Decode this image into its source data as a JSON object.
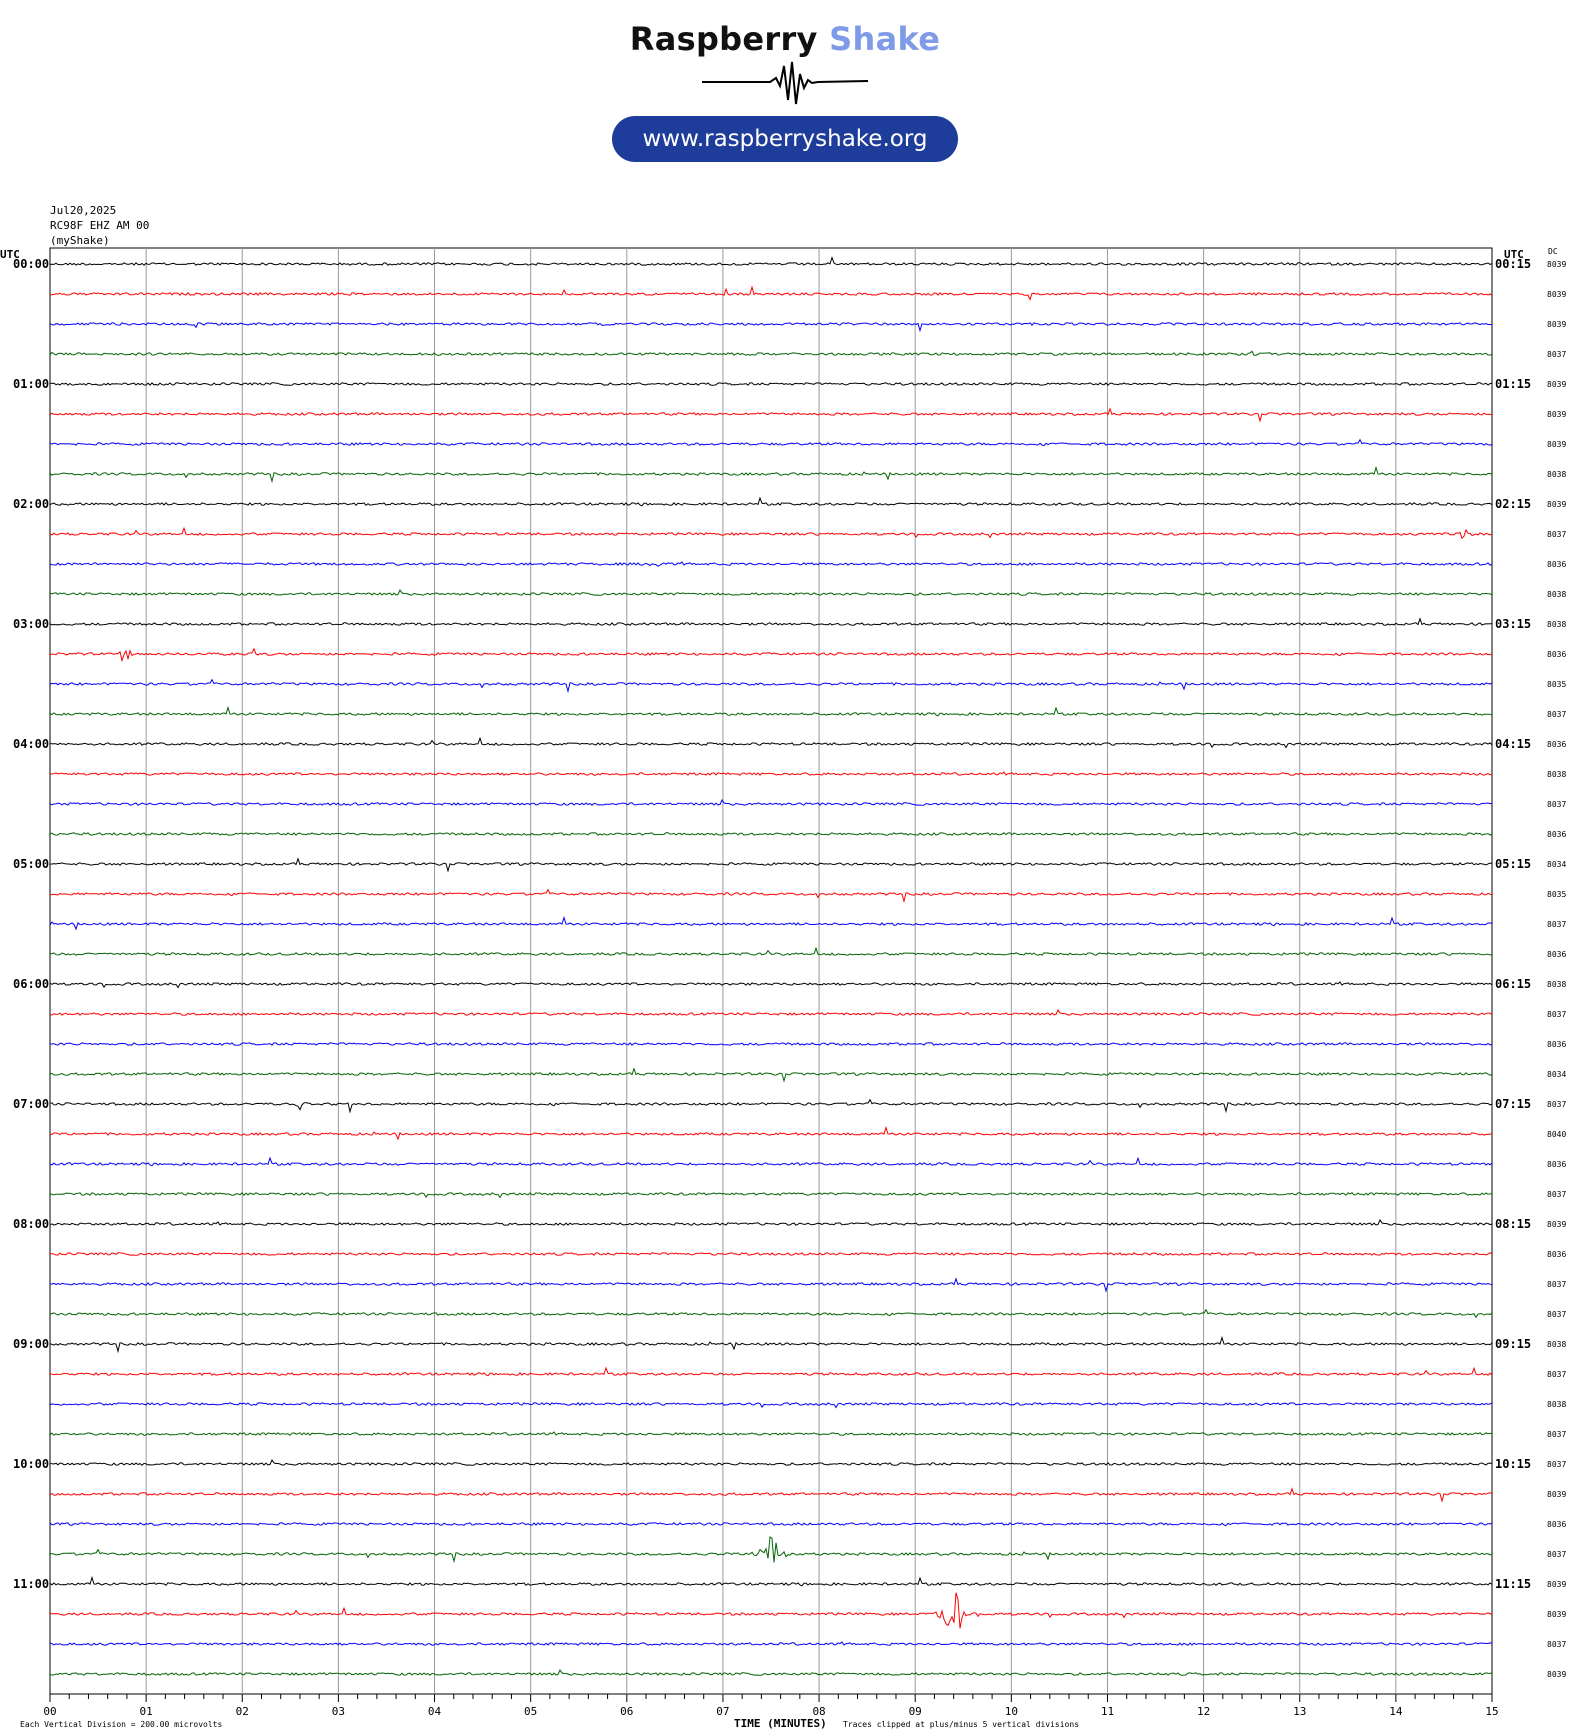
{
  "header": {
    "brand_part1": "Raspberry",
    "brand_part2": "Shake",
    "url": "www.raspberryshake.org",
    "date": "Jul20,2025",
    "station": "RC98F EHZ AM 00",
    "source": "(myShake)"
  },
  "colors": {
    "brand_dark": "#111111",
    "brand_light": "#7f9ae6",
    "pill": "#1e3c99",
    "traces": [
      "#000000",
      "#ff0000",
      "#0000ff",
      "#006400"
    ]
  },
  "chart_data": {
    "type": "line",
    "left_axis_title": "UTC",
    "right_axis_title": "UTC",
    "dc_title": "DC",
    "xlabel": "TIME (MINUTES)",
    "x_ticks": [
      "00",
      "01",
      "02",
      "03",
      "04",
      "05",
      "06",
      "07",
      "08",
      "09",
      "10",
      "11",
      "12",
      "13",
      "14",
      "15"
    ],
    "xlim": [
      0,
      15
    ],
    "left_labels": [
      "00:00",
      "01:00",
      "02:00",
      "03:00",
      "04:00",
      "05:00",
      "06:00",
      "07:00",
      "08:00",
      "09:00",
      "10:00",
      "11:00"
    ],
    "right_labels": [
      "00:15",
      "01:15",
      "02:15",
      "03:15",
      "04:15",
      "05:15",
      "06:15",
      "07:15",
      "08:15",
      "09:15",
      "10:15",
      "11:15"
    ],
    "dc_values": [
      "8039",
      "8039",
      "8039",
      "8037",
      "8039",
      "8039",
      "8039",
      "8038",
      "8039",
      "8037",
      "8036",
      "8038",
      "8038",
      "8036",
      "8035",
      "8037",
      "8036",
      "8038",
      "8037",
      "8036",
      "8034",
      "8035",
      "8037",
      "8036",
      "8038",
      "8037",
      "8036",
      "8034",
      "8037",
      "8040",
      "8036",
      "8037",
      "8039",
      "8036",
      "8037",
      "8037",
      "8038",
      "8037",
      "8038",
      "8037",
      "8037",
      "8039",
      "8036",
      "8037",
      "8039",
      "8039",
      "8037",
      "8039"
    ],
    "footer_left": "Each Vertical Division =  200.00 microvolts",
    "footer_right": "Traces clipped at plus/minus 5 vertical divisions",
    "events": [
      {
        "row": 45,
        "minute": 9.4,
        "amplitude": 4
      },
      {
        "row": 43,
        "minute": 7.5,
        "amplitude": 3
      },
      {
        "row": 28,
        "minute": 2.6,
        "amplitude": 1
      },
      {
        "row": 9,
        "minute": 14.7,
        "amplitude": 1
      },
      {
        "row": 10,
        "minute": 6.3,
        "amplitude": 1
      },
      {
        "row": 13,
        "minute": 0.8,
        "amplitude": 1
      }
    ]
  }
}
